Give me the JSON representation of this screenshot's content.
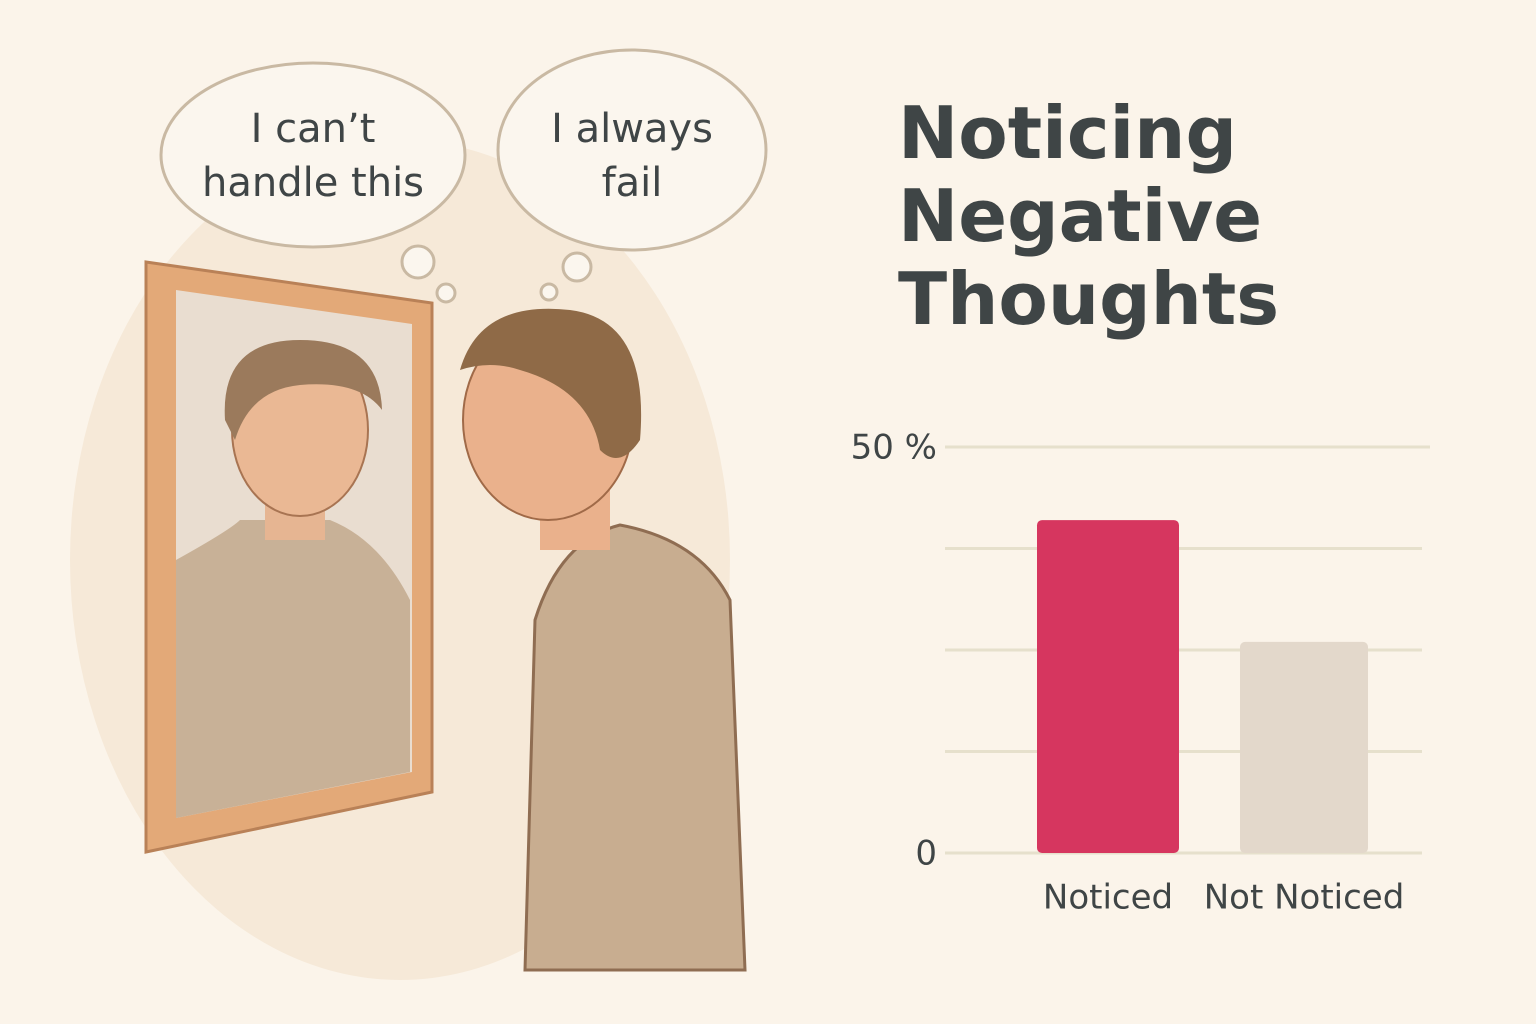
{
  "chart_data": {
    "type": "bar",
    "title": "Noticing Negative Thoughts",
    "categories": [
      "Noticed",
      "Not Noticed"
    ],
    "values": [
      41,
      26
    ],
    "colors": [
      "#d6365f",
      "#e3d8cb"
    ],
    "ylim": [
      0,
      50
    ],
    "yticks": [
      0,
      {
        "value": 12.5,
        "label": null
      },
      {
        "value": 25,
        "label": null
      },
      {
        "value": 37.5,
        "label": null
      },
      {
        "value": 50,
        "label": "50 %"
      }
    ],
    "grid": true
  },
  "thought_bubbles": [
    "I can’t handle this",
    "I always fail"
  ]
}
